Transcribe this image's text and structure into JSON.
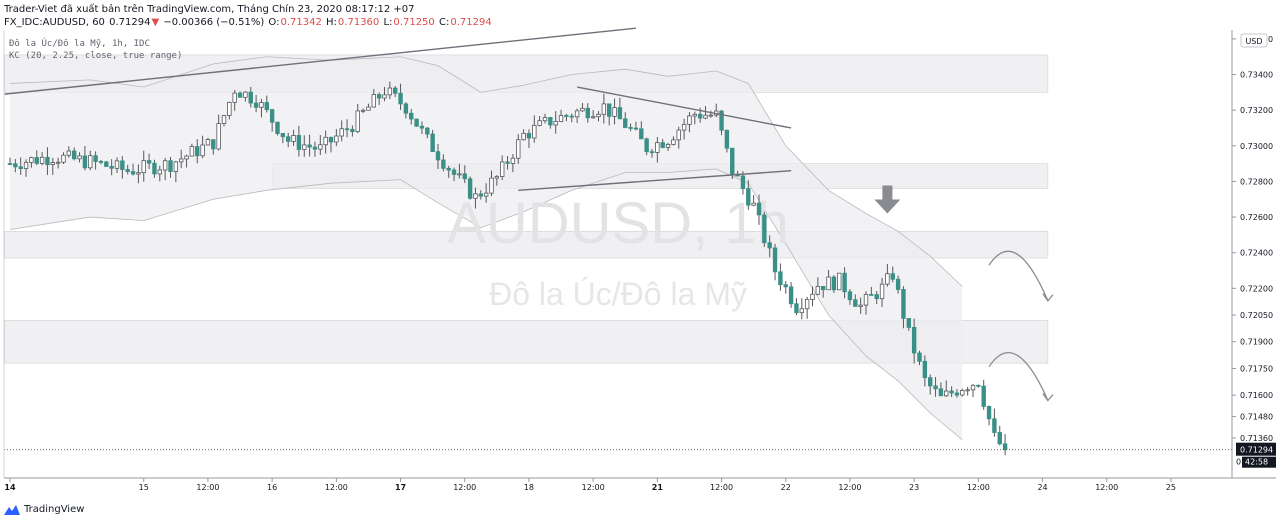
{
  "header": {
    "publisher_line": "Trader-Viet đã xuất bản trên TradingView.com, Tháng Chín 23, 2020 08:17:12 +07",
    "symbol": "FX_IDC:AUDUSD, 60",
    "last": "0.71294",
    "change": "−0.00366 (−0.51%)",
    "o_label": "O:",
    "o": "0.71342",
    "h_label": "H:",
    "h": "0.71360",
    "l_label": "L:",
    "l": "0.71250",
    "c_label": "C:",
    "c": "0.71294"
  },
  "legend": {
    "series": "Đô la Úc/Đô la Mỹ, 1h, IDC",
    "indicator": "KC (20, 2.25, close, true range)"
  },
  "watermark": {
    "symbol": "AUDUSD, 1h",
    "name": "Đô la Úc/Đô la Mỹ"
  },
  "footer": {
    "brand": "TradingView"
  },
  "colors": {
    "up": "#ffffff",
    "down": "#3a8f86",
    "wick": "#55585c",
    "band": "#e8e8ea",
    "zone": "#f0f0f2",
    "trendline": "#6e7079",
    "price_tag": "#131722"
  },
  "chart_data": {
    "type": "candlestick",
    "instrument": "AUDUSD",
    "timeframe": "1h",
    "currency": "USD",
    "ylim": [
      0.7118,
      0.7365
    ],
    "price_ticks": [
      "0.73600",
      "0.73400",
      "0.73200",
      "0.73000",
      "0.72800",
      "0.72600",
      "0.72400",
      "0.72200",
      "0.72050",
      "0.71900",
      "0.71750",
      "0.71600",
      "0.71480",
      "0.71360"
    ],
    "price_tick_values": [
      0.736,
      0.734,
      0.732,
      0.73,
      0.728,
      0.726,
      0.724,
      0.722,
      0.7205,
      0.719,
      0.7175,
      0.716,
      0.7148,
      0.7136
    ],
    "time_ticks": [
      {
        "label": "14",
        "i": 0,
        "bold": true
      },
      {
        "label": "15",
        "i": 25
      },
      {
        "label": "12:00",
        "i": 37
      },
      {
        "label": "16",
        "i": 49
      },
      {
        "label": "12:00",
        "i": 61
      },
      {
        "label": "17",
        "i": 73,
        "bold": true
      },
      {
        "label": "12:00",
        "i": 85
      },
      {
        "label": "18",
        "i": 97
      },
      {
        "label": "12:00",
        "i": 109
      },
      {
        "label": "21",
        "i": 121,
        "bold": true
      },
      {
        "label": "12:00",
        "i": 133
      },
      {
        "label": "22",
        "i": 145
      },
      {
        "label": "12:00",
        "i": 157
      },
      {
        "label": "23",
        "i": 169
      },
      {
        "label": "12:00",
        "i": 181
      },
      {
        "label": "24",
        "i": 193
      },
      {
        "label": "12:00",
        "i": 205
      },
      {
        "label": "25",
        "i": 217
      }
    ],
    "last_price": 0.71294,
    "last_price_label": "0.71294",
    "countdown": "42:58",
    "zero_label": "0",
    "guide_points": [
      [
        0,
        0.729
      ],
      [
        8,
        0.7294
      ],
      [
        15,
        0.7291
      ],
      [
        22,
        0.7286
      ],
      [
        30,
        0.729
      ],
      [
        38,
        0.7302
      ],
      [
        42,
        0.7332
      ],
      [
        46,
        0.7326
      ],
      [
        52,
        0.7303
      ],
      [
        58,
        0.7298
      ],
      [
        64,
        0.7312
      ],
      [
        70,
        0.7331
      ],
      [
        74,
        0.7322
      ],
      [
        78,
        0.7303
      ],
      [
        83,
        0.7284
      ],
      [
        87,
        0.7271
      ],
      [
        91,
        0.7282
      ],
      [
        96,
        0.7306
      ],
      [
        101,
        0.7314
      ],
      [
        106,
        0.7319
      ],
      [
        111,
        0.7322
      ],
      [
        115,
        0.7312
      ],
      [
        119,
        0.7299
      ],
      [
        123,
        0.7304
      ],
      [
        128,
        0.7318
      ],
      [
        132,
        0.7317
      ],
      [
        135,
        0.7286
      ],
      [
        139,
        0.7266
      ],
      [
        143,
        0.723
      ],
      [
        147,
        0.721
      ],
      [
        151,
        0.7222
      ],
      [
        155,
        0.7224
      ],
      [
        159,
        0.721
      ],
      [
        163,
        0.722
      ],
      [
        165,
        0.7228
      ],
      [
        168,
        0.7194
      ],
      [
        171,
        0.7168
      ],
      [
        174,
        0.7158
      ],
      [
        178,
        0.7165
      ],
      [
        181,
        0.7168
      ],
      [
        184,
        0.7136
      ],
      [
        186,
        0.71294
      ]
    ],
    "band_upper": [
      [
        0,
        0.7335
      ],
      [
        15,
        0.7337
      ],
      [
        25,
        0.7333
      ],
      [
        38,
        0.7346
      ],
      [
        48,
        0.735
      ],
      [
        60,
        0.7348
      ],
      [
        73,
        0.735
      ],
      [
        80,
        0.7345
      ],
      [
        88,
        0.733
      ],
      [
        96,
        0.7334
      ],
      [
        105,
        0.734
      ],
      [
        115,
        0.7343
      ],
      [
        123,
        0.7339
      ],
      [
        132,
        0.7342
      ],
      [
        138,
        0.7335
      ],
      [
        145,
        0.73
      ],
      [
        153,
        0.7275
      ],
      [
        160,
        0.7262
      ],
      [
        166,
        0.7252
      ],
      [
        172,
        0.7238
      ],
      [
        178,
        0.7221
      ]
    ],
    "band_lower": [
      [
        0,
        0.7253
      ],
      [
        15,
        0.726
      ],
      [
        25,
        0.7258
      ],
      [
        38,
        0.727
      ],
      [
        48,
        0.7275
      ],
      [
        60,
        0.7279
      ],
      [
        73,
        0.7281
      ],
      [
        80,
        0.7268
      ],
      [
        88,
        0.7254
      ],
      [
        96,
        0.7263
      ],
      [
        105,
        0.7275
      ],
      [
        115,
        0.7285
      ],
      [
        123,
        0.7285
      ],
      [
        132,
        0.7287
      ],
      [
        138,
        0.7279
      ],
      [
        145,
        0.7245
      ],
      [
        153,
        0.7205
      ],
      [
        160,
        0.7182
      ],
      [
        166,
        0.7168
      ],
      [
        172,
        0.715
      ],
      [
        178,
        0.7135
      ]
    ],
    "zones": [
      {
        "from_i": -1,
        "to_i": 194,
        "top": 0.7351,
        "bottom": 0.733
      },
      {
        "from_i": 49,
        "to_i": 194,
        "top": 0.729,
        "bottom": 0.7276
      },
      {
        "from_i": -1,
        "to_i": 194,
        "top": 0.7252,
        "bottom": 0.7237
      },
      {
        "from_i": -1,
        "to_i": 194,
        "top": 0.7202,
        "bottom": 0.7178
      }
    ],
    "trendlines": [
      {
        "i1": -1,
        "p1": 0.7329,
        "i2": 117,
        "p2": 0.7366
      },
      {
        "i1": 106,
        "p1": 0.7333,
        "i2": 146,
        "p2": 0.731
      },
      {
        "i1": 95,
        "p1": 0.7275,
        "i2": 146,
        "p2": 0.7286
      }
    ],
    "arrows": [
      {
        "type": "down-marker",
        "i": 164,
        "p": 0.7262
      },
      {
        "type": "curve",
        "i1": 183,
        "p1": 0.7233,
        "i2": 194,
        "p2": 0.7213
      },
      {
        "type": "curve",
        "i1": 183,
        "p1": 0.7176,
        "i2": 194,
        "p2": 0.7157
      }
    ]
  }
}
